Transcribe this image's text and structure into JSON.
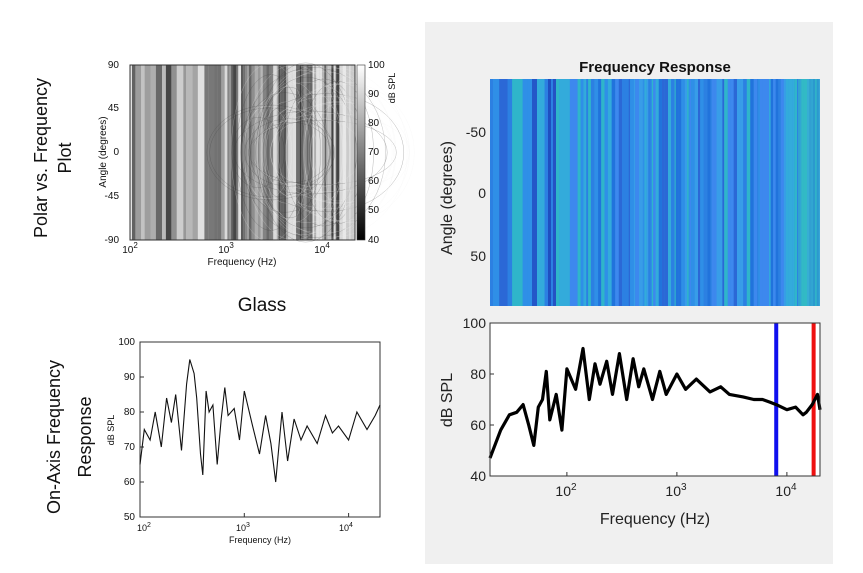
{
  "left": {
    "row_label_top": [
      "Polar vs. Frequency",
      "Plot"
    ],
    "row_label_bottom": [
      "On-Axis Frequency",
      "Response"
    ],
    "section_title": "Glass",
    "heatmap": {
      "ylabel": "Angle (degrees)",
      "xlabel": "Frequency (Hz)",
      "yticks": [
        "90",
        "45",
        "0",
        "-45",
        "-90"
      ],
      "xticks": [
        {
          "base": "10",
          "exp": "2"
        },
        {
          "base": "10",
          "exp": "3"
        },
        {
          "base": "10",
          "exp": "4"
        }
      ],
      "colorbar_label": "dB SPL",
      "colorbar_ticks": [
        "100",
        "90",
        "80",
        "70",
        "60",
        "50",
        "40"
      ]
    },
    "line": {
      "ylabel": "dB SPL",
      "xlabel": "Frequency (Hz)",
      "yticks": [
        "100",
        "90",
        "80",
        "70",
        "60",
        "50"
      ],
      "xticks": [
        {
          "base": "10",
          "exp": "2"
        },
        {
          "base": "10",
          "exp": "3"
        },
        {
          "base": "10",
          "exp": "4"
        }
      ]
    }
  },
  "right": {
    "title": "Frequency Response",
    "heatmap": {
      "ylabel": "Angle (degrees)",
      "yticks": [
        "-50",
        "0",
        "50"
      ]
    },
    "line": {
      "ylabel": "dB SPL",
      "xlabel": "Frequency (Hz)",
      "yticks": [
        "100",
        "80",
        "60",
        "40"
      ],
      "xticks": [
        {
          "base": "10",
          "exp": "2"
        },
        {
          "base": "10",
          "exp": "3"
        },
        {
          "base": "10",
          "exp": "4"
        }
      ],
      "markers": [
        {
          "freq": 8000,
          "color": "#1010ee"
        },
        {
          "freq": 17500,
          "color": "#ee1010"
        }
      ]
    }
  },
  "chart_data": [
    {
      "type": "heatmap",
      "title": "",
      "xlabel": "Frequency (Hz)",
      "ylabel": "Angle (degrees)",
      "xscale": "log",
      "xlim": [
        100,
        20000
      ],
      "ylim": [
        -90,
        90
      ],
      "colorbar": {
        "label": "dB SPL",
        "range": [
          40,
          100
        ]
      },
      "colormap": "gray"
    },
    {
      "type": "line",
      "title": "",
      "xlabel": "Frequency (Hz)",
      "ylabel": "dB SPL",
      "xscale": "log",
      "xlim": [
        100,
        20000
      ],
      "ylim": [
        50,
        100
      ],
      "series": [
        {
          "x": [
            100,
            110,
            125,
            140,
            160,
            180,
            200,
            220,
            250,
            280,
            300,
            330,
            350,
            380,
            400,
            430,
            460,
            500,
            550,
            600,
            650,
            700,
            800,
            900,
            1000,
            1200,
            1400,
            1600,
            1800,
            2000,
            2300,
            2600,
            3000,
            3500,
            4000,
            5000,
            6000,
            7000,
            8000,
            10000,
            12000,
            15000,
            18000,
            20000
          ],
          "values": [
            65,
            75,
            72,
            80,
            70,
            84,
            77,
            85,
            69,
            88,
            95,
            91,
            84,
            68,
            62,
            86,
            80,
            82,
            65,
            78,
            87,
            79,
            81,
            72,
            86,
            76,
            68,
            79,
            71,
            60,
            80,
            66,
            78,
            72,
            76,
            71,
            79,
            74,
            76,
            72,
            80,
            75,
            79,
            82
          ]
        }
      ]
    },
    {
      "type": "heatmap",
      "title": "Frequency Response",
      "xlabel": "",
      "ylabel": "Angle (degrees)",
      "xscale": "log",
      "xlim": [
        20,
        20000
      ],
      "ylim": [
        -90,
        90
      ],
      "colormap": "parula"
    },
    {
      "type": "line",
      "title": "",
      "xlabel": "Frequency (Hz)",
      "ylabel": "dB SPL",
      "xscale": "log",
      "xlim": [
        20,
        20000
      ],
      "ylim": [
        40,
        100
      ],
      "series": [
        {
          "x": [
            20,
            25,
            30,
            35,
            40,
            45,
            50,
            55,
            60,
            65,
            70,
            80,
            90,
            100,
            120,
            140,
            160,
            180,
            200,
            230,
            260,
            300,
            350,
            400,
            450,
            500,
            600,
            700,
            800,
            1000,
            1200,
            1500,
            2000,
            2500,
            3000,
            4000,
            5000,
            6000,
            7000,
            8000,
            10000,
            12000,
            14000,
            15000,
            17000,
            19000,
            20000
          ],
          "values": [
            47,
            58,
            64,
            65,
            68,
            60,
            52,
            67,
            70,
            81,
            62,
            72,
            58,
            82,
            74,
            90,
            70,
            84,
            76,
            85,
            72,
            88,
            70,
            86,
            75,
            82,
            70,
            81,
            72,
            80,
            74,
            78,
            73,
            75,
            72,
            71,
            70,
            70,
            69,
            68,
            66,
            67,
            64,
            65,
            68,
            72,
            66
          ]
        }
      ],
      "markers": [
        8000,
        17500
      ]
    }
  ]
}
